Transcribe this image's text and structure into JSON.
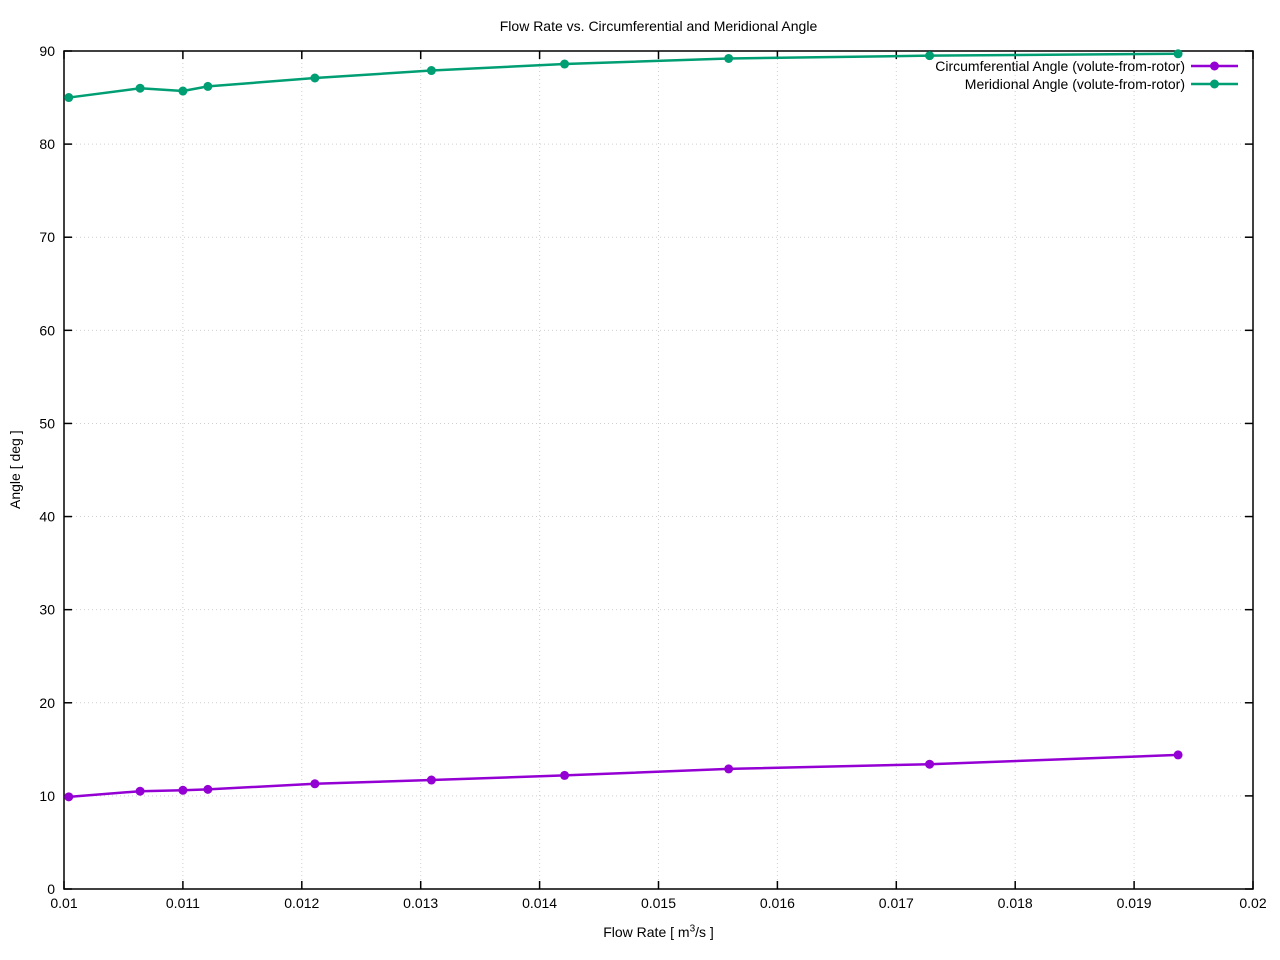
{
  "chart_data": {
    "type": "line",
    "title": "Flow Rate vs. Circumferential and Meridional Angle",
    "xlabel_parts": {
      "pre": "Flow Rate [ m",
      "sup": "3",
      "post": "/s ]"
    },
    "ylabel": "Angle [ deg ]",
    "xlim": [
      0.01,
      0.02
    ],
    "ylim": [
      0,
      90
    ],
    "xticks": [
      0.01,
      0.011,
      0.012,
      0.013,
      0.014,
      0.015,
      0.016,
      0.017,
      0.018,
      0.019,
      0.02
    ],
    "xtick_labels": [
      "0.01",
      "0.011",
      "0.012",
      "0.013",
      "0.014",
      "0.015",
      "0.016",
      "0.017",
      "0.018",
      "0.019",
      "0.02"
    ],
    "yticks": [
      0,
      10,
      20,
      30,
      40,
      50,
      60,
      70,
      80,
      90
    ],
    "ytick_labels": [
      "0",
      "10",
      "20",
      "30",
      "40",
      "50",
      "60",
      "70",
      "80",
      "90"
    ],
    "grid": true,
    "grid_color": "#d0d0d0",
    "axis_color": "#000000",
    "background_color": "#ffffff",
    "legend_position": "top-right",
    "x": [
      0.01004,
      0.01064,
      0.011,
      0.01121,
      0.01211,
      0.01309,
      0.01421,
      0.01559,
      0.01728,
      0.01937
    ],
    "series": [
      {
        "name": "Circumferential Angle (volute-from-rotor)",
        "color": "#9400d3",
        "values": [
          9.9,
          10.5,
          10.6,
          10.7,
          11.3,
          11.7,
          12.2,
          12.9,
          13.4,
          14.4
        ]
      },
      {
        "name": "Meridional Angle (volute-from-rotor)",
        "color": "#009e73",
        "values": [
          85.0,
          86.0,
          85.7,
          86.2,
          87.1,
          87.9,
          88.6,
          89.2,
          89.5,
          89.7
        ]
      }
    ]
  }
}
